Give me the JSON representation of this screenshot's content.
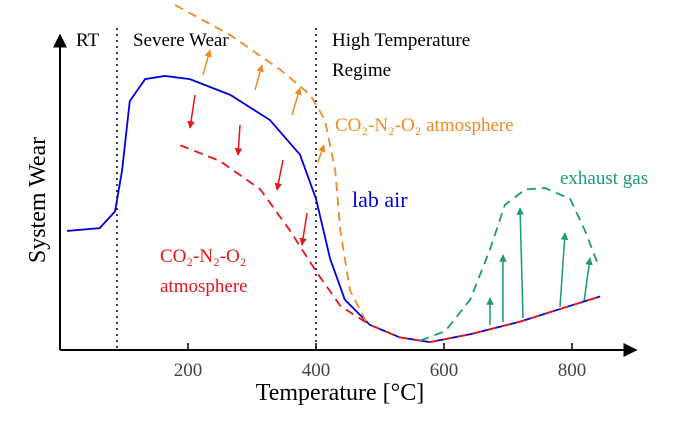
{
  "chart_data": {
    "type": "line",
    "xlabel": "Temperature [°C]",
    "ylabel": "System Wear",
    "xlim": [
      0,
      900
    ],
    "ylim": [
      0,
      100
    ],
    "xticks": [
      200,
      400,
      600,
      800
    ],
    "regions": [
      {
        "label": "RT"
      },
      {
        "label": "Severe Wear"
      },
      {
        "label": "High Temperature Regime"
      }
    ],
    "region_boundaries": [
      89,
      400
    ],
    "series": [
      {
        "name": "lab air",
        "color": "#0000dd",
        "dashed": false,
        "x": [
          11,
          62,
          86,
          97,
          109,
          133,
          164,
          203,
          266,
          328,
          375,
          400,
          422,
          445,
          484,
          531,
          578,
          641,
          719,
          781,
          844
        ],
        "values": [
          37.8,
          38.7,
          44,
          57,
          79,
          86,
          87,
          86,
          81,
          73,
          62,
          48,
          29,
          16,
          8,
          4,
          2.5,
          5,
          9,
          13,
          17
        ]
      },
      {
        "name": "CO₂-N₂-O₂ atmosphere",
        "color": "#f08a24",
        "dashed": true,
        "x": [
          180,
          266,
          344,
          391,
          414,
          430,
          438,
          453,
          477,
          484
        ],
        "values": [
          109.5,
          100,
          89,
          81,
          73,
          57,
          38,
          19,
          9.5,
          8
        ]
      },
      {
        "name": "CO₂-N₂-O₂ atmosphere",
        "color": "#e8141a",
        "dashed": true,
        "x": [
          188,
          250,
          313,
          359,
          400,
          438,
          484,
          531,
          578,
          641,
          719,
          781,
          844
        ],
        "values": [
          65,
          60,
          51,
          38,
          25,
          14,
          8,
          4,
          2.5,
          5,
          9,
          13,
          17
        ]
      },
      {
        "name": "exhaust gas",
        "color": "#1a9a78",
        "dashed": true,
        "x": [
          563,
          602,
          641,
          672,
          695,
          727,
          758,
          797,
          820,
          841
        ],
        "values": [
          3,
          6,
          16,
          32,
          46,
          51,
          51.4,
          48,
          38,
          27
        ]
      }
    ]
  }
}
